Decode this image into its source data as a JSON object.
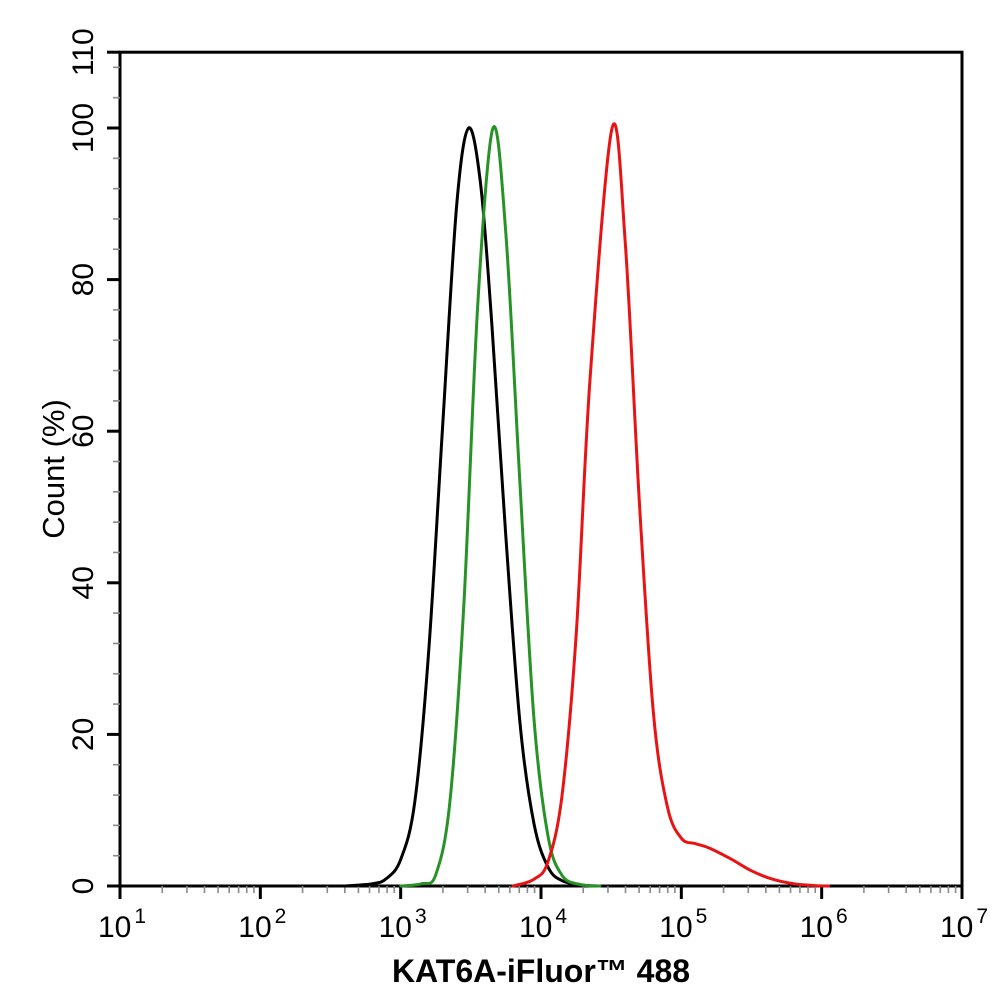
{
  "figure": {
    "kind": "flow-cytometry-histogram",
    "background": "#ffffff",
    "axis_color": "#000000",
    "minor_tick_color": "#8a8a8a"
  },
  "chart_data": {
    "type": "line",
    "subtype": "flow-cytometry-histogram-overlay",
    "title": "",
    "xlabel": "KAT6A-iFluor™ 488",
    "ylabel": "Count (%)",
    "x_scale": "log",
    "x_range": [
      10,
      10000000
    ],
    "ylim": [
      0,
      110
    ],
    "grid": false,
    "legend": false,
    "x_tick_base": "10",
    "x_major_ticks_exponents": [
      1,
      2,
      3,
      4,
      5,
      6,
      7
    ],
    "x_minor_ticks_mantissas": [
      2,
      3,
      4,
      5,
      6,
      7,
      8,
      9
    ],
    "y_major_ticks": [
      0,
      20,
      40,
      60,
      80,
      100,
      110
    ],
    "y_minor_step": 4,
    "series": [
      {
        "name": "series-black",
        "color": "#000000",
        "peak_x": 3100,
        "peak_y": 100,
        "points_log10x_percent": [
          [
            2.6,
            0
          ],
          [
            2.8,
            0.3
          ],
          [
            2.9,
            1.0
          ],
          [
            3.0,
            3.5
          ],
          [
            3.1,
            11
          ],
          [
            3.2,
            31
          ],
          [
            3.3,
            61
          ],
          [
            3.4,
            90
          ],
          [
            3.485,
            100
          ],
          [
            3.57,
            92.5
          ],
          [
            3.65,
            74
          ],
          [
            3.75,
            46
          ],
          [
            3.85,
            21.5
          ],
          [
            3.95,
            8.2
          ],
          [
            4.05,
            2.5
          ],
          [
            4.15,
            0.7
          ],
          [
            4.3,
            0.1
          ],
          [
            4.42,
            0
          ]
        ]
      },
      {
        "name": "series-green",
        "color": "#279327",
        "peak_x": 4500,
        "peak_y": 100,
        "points_log10x_percent": [
          [
            3.0,
            0
          ],
          [
            3.15,
            0.3
          ],
          [
            3.25,
            1.5
          ],
          [
            3.35,
            11
          ],
          [
            3.45,
            37
          ],
          [
            3.55,
            77
          ],
          [
            3.658,
            100
          ],
          [
            3.75,
            86
          ],
          [
            3.85,
            53
          ],
          [
            3.95,
            22
          ],
          [
            4.05,
            6.6
          ],
          [
            4.15,
            1.4
          ],
          [
            4.28,
            0.2
          ],
          [
            4.42,
            0
          ]
        ]
      },
      {
        "name": "series-red",
        "color": "#e81414",
        "peak_x": 32000,
        "peak_y": 100,
        "points_log10x_percent": [
          [
            3.8,
            0
          ],
          [
            3.95,
            0.9
          ],
          [
            4.05,
            3.2
          ],
          [
            4.15,
            12
          ],
          [
            4.25,
            33
          ],
          [
            4.35,
            67
          ],
          [
            4.507,
            100
          ],
          [
            4.6,
            85
          ],
          [
            4.7,
            51
          ],
          [
            4.8,
            23
          ],
          [
            4.9,
            10.5
          ],
          [
            5.0,
            6.3
          ],
          [
            5.1,
            5.6
          ],
          [
            5.2,
            5.0
          ],
          [
            5.35,
            3.6
          ],
          [
            5.5,
            2.0
          ],
          [
            5.65,
            0.9
          ],
          [
            5.8,
            0.3
          ],
          [
            5.95,
            0.05
          ],
          [
            6.05,
            0
          ]
        ]
      }
    ]
  }
}
